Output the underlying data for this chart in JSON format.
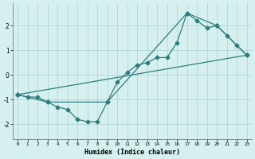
{
  "xlabel": "Humidex (Indice chaleur)",
  "background_color": "#d6f0f0",
  "grid_color": "#b0d8d8",
  "line_color": "#2d7d7d",
  "xlim": [
    -0.5,
    23.5
  ],
  "ylim": [
    -2.6,
    2.9
  ],
  "yticks": [
    -2,
    -1,
    0,
    1,
    2
  ],
  "xticks": [
    0,
    1,
    2,
    3,
    4,
    5,
    6,
    7,
    8,
    9,
    10,
    11,
    12,
    13,
    14,
    15,
    16,
    17,
    18,
    19,
    20,
    21,
    22,
    23
  ],
  "series1_x": [
    0,
    1,
    2,
    3,
    4,
    5,
    6,
    7,
    8,
    9,
    10,
    11,
    12,
    13,
    14,
    15,
    16,
    17,
    18,
    19,
    20,
    21,
    22,
    23
  ],
  "series1_y": [
    -0.8,
    -0.9,
    -0.9,
    -1.1,
    -1.3,
    -1.4,
    -1.8,
    -1.9,
    -1.9,
    -1.1,
    -0.3,
    0.1,
    0.4,
    0.5,
    0.7,
    0.7,
    1.3,
    2.5,
    2.2,
    1.9,
    2.0,
    1.6,
    1.2,
    0.8
  ],
  "envelope_x": [
    0,
    3,
    9,
    17,
    20,
    23,
    0
  ],
  "envelope_y": [
    -0.8,
    -1.1,
    -1.1,
    2.5,
    2.0,
    0.8,
    -0.8
  ],
  "marker": "D",
  "markersize": 2.5,
  "linewidth": 0.9
}
